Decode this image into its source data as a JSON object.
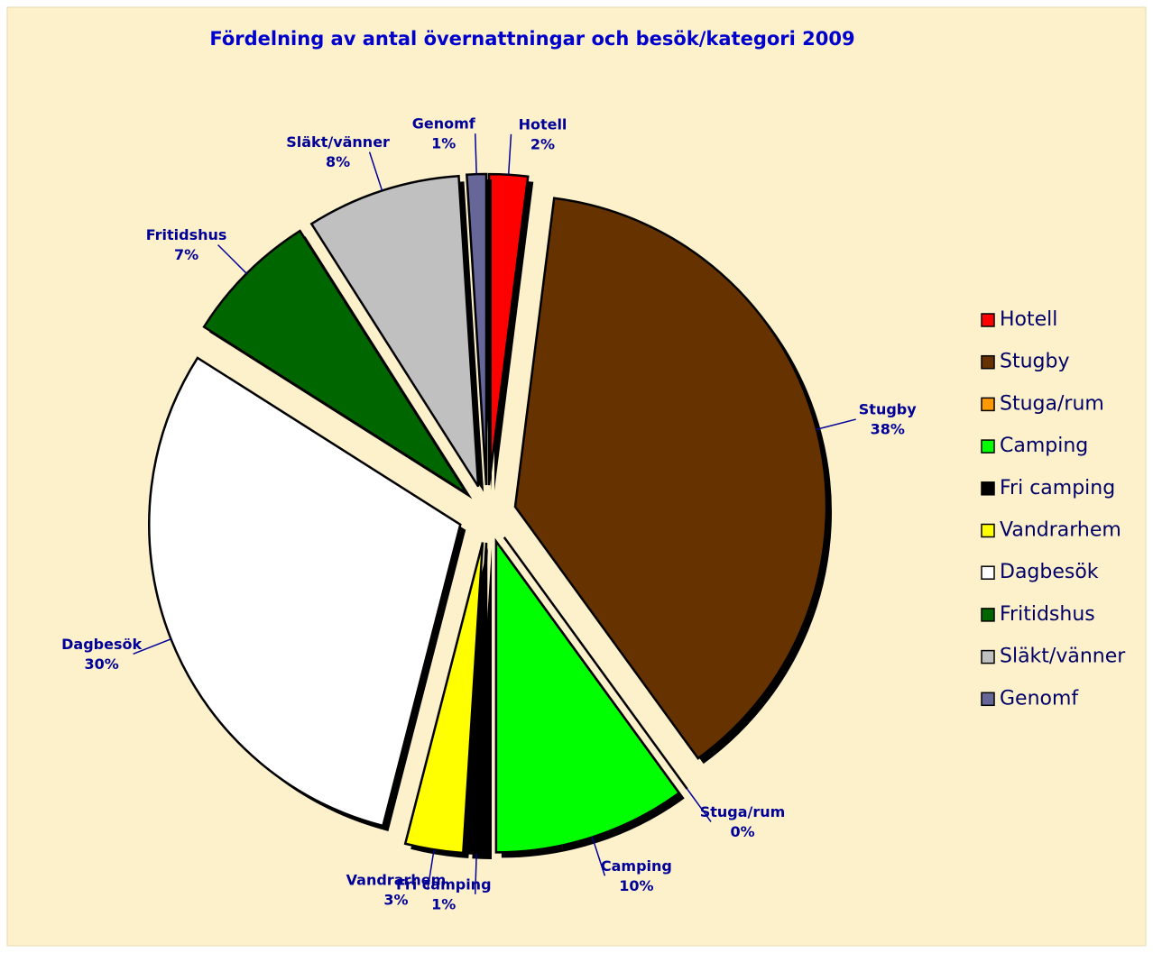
{
  "chart_data": {
    "type": "pie",
    "title": "Fördelning av antal övernattningar och besök/kategori 2009",
    "categories": [
      "Hotell",
      "Stugby",
      "Stuga/rum",
      "Camping",
      "Fri camping",
      "Vandrarhem",
      "Dagbesök",
      "Fritidshus",
      "Släkt/vänner",
      "Genomf"
    ],
    "values": [
      2,
      38,
      0,
      10,
      1,
      3,
      30,
      7,
      8,
      1
    ],
    "value_labels": [
      "2%",
      "38%",
      "0%",
      "10%",
      "1%",
      "3%",
      "30%",
      "7%",
      "8%",
      "1%"
    ],
    "colors": [
      "#ff0000",
      "#663300",
      "#ff9900",
      "#00ff00",
      "#000000",
      "#ffff00",
      "#ffffff",
      "#006600",
      "#c0c0c0",
      "#666699"
    ],
    "legend": "right"
  }
}
